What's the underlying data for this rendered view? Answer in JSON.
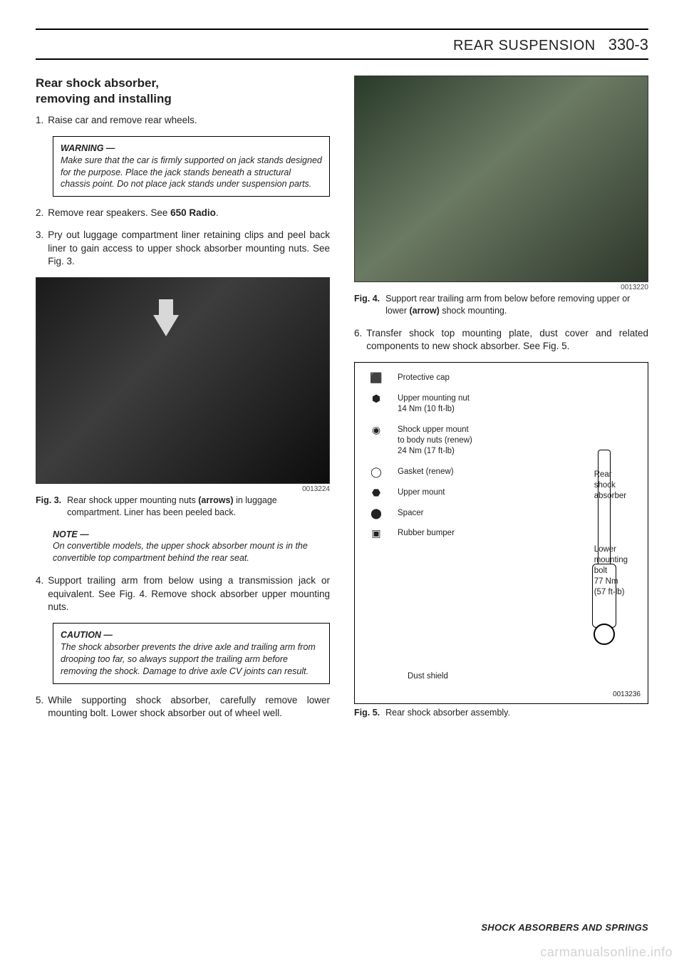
{
  "header": {
    "section_title": "REAR SUSPENSION",
    "page_no": "330-3"
  },
  "left": {
    "section_heading_l1": "Rear shock absorber,",
    "section_heading_l2": "removing and installing",
    "step1_num": "1.",
    "step1_txt": "Raise car and remove rear wheels.",
    "warn_label": "WARNING —",
    "warn_body": "Make sure that the car is firmly supported on jack stands designed for the purpose. Place the jack stands beneath a structural chassis point. Do not place jack stands under suspension parts.",
    "step2_num": "2.",
    "step2_txt_a": "Remove rear speakers. See ",
    "step2_txt_b": "650 Radio",
    "step2_txt_c": ".",
    "step3_num": "3.",
    "step3_txt": "Pry out luggage compartment liner retaining clips and peel back liner to gain access to upper shock absorber mounting nuts. See Fig. 3.",
    "photo3_id": "0013224",
    "fig3_num": "Fig. 3.",
    "fig3_txt_a": "Rear shock upper mounting nuts ",
    "fig3_txt_b": "(arrows)",
    "fig3_txt_c": " in luggage compartment. Liner has been peeled back.",
    "note_label": "NOTE —",
    "note_body": "On convertible models, the upper shock absorber mount is in the convertible top compartment behind the rear seat.",
    "step4_num": "4.",
    "step4_txt": "Support trailing arm from below using a transmission jack or equivalent. See Fig. 4. Remove shock absorber upper mounting nuts.",
    "caut_label": "CAUTION —",
    "caut_body": "The shock absorber prevents the drive axle and trailing arm from drooping too far, so always support the trailing arm before removing the shock. Damage to drive axle CV joints can result.",
    "step5_num": "5.",
    "step5_txt": "While supporting shock absorber, carefully remove lower mounting bolt. Lower shock absorber out of wheel well."
  },
  "right": {
    "photo4_id": "0013220",
    "fig4_num": "Fig. 4.",
    "fig4_txt_a": "Support rear trailing arm from below before removing upper or lower ",
    "fig4_txt_b": "(arrow)",
    "fig4_txt_c": " shock mounting.",
    "step6_num": "6.",
    "step6_txt": "Transfer shock top mounting plate, dust cover and related components to new shock absorber. See Fig. 5.",
    "diagram": {
      "protective_cap": "Protective cap",
      "upper_nut_l1": "Upper mounting nut",
      "upper_nut_l2": "14 Nm (10 ft-lb)",
      "upper_mount_l1": "Shock upper mount",
      "upper_mount_l2": "to body nuts (renew)",
      "upper_mount_l3": "24 Nm (17 ft-lb)",
      "gasket": "Gasket (renew)",
      "upper_mount_label": "Upper mount",
      "spacer": "Spacer",
      "rubber_bumper": "Rubber bumper",
      "dust_shield": "Dust shield",
      "rear_shock_l1": "Rear",
      "rear_shock_l2": "shock",
      "rear_shock_l3": "absorber",
      "lower_l1": "Lower",
      "lower_l2": "mounting",
      "lower_l3": "bolt",
      "lower_l4": "77 Nm",
      "lower_l5": "(57 ft-lb)",
      "id": "0013236"
    },
    "fig5_num": "Fig. 5.",
    "fig5_txt": "Rear shock absorber assembly."
  },
  "footer": "SHOCK ABSORBERS AND SPRINGS",
  "watermark": "carmanualsonline.info"
}
